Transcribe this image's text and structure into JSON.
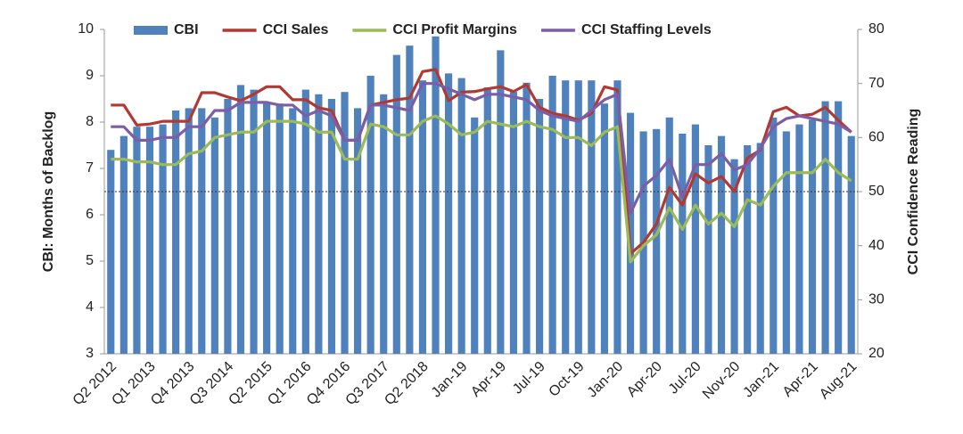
{
  "chart_data": {
    "type": "bar",
    "categories": [
      "Q2 2012",
      null,
      null,
      "Q1 2013",
      null,
      null,
      "Q4 2013",
      null,
      null,
      "Q3 2014",
      null,
      null,
      "Q2 2015",
      null,
      null,
      "Q1 2016",
      null,
      null,
      "Q4 2016",
      null,
      null,
      "Q3 2017",
      null,
      null,
      "Q2 2018",
      null,
      null,
      "Jan-19",
      null,
      null,
      "Apr-19",
      null,
      null,
      "Jul-19",
      null,
      null,
      "Oct-19",
      null,
      null,
      "Jan-20",
      null,
      null,
      "Apr-20",
      null,
      null,
      "Jul-20",
      null,
      null,
      "Nov-20",
      null,
      null,
      "Jan-21",
      null,
      null,
      "Apr-21",
      null,
      null,
      "Aug-21"
    ],
    "series": [
      {
        "name": "CBI",
        "type": "bar",
        "axis": "y",
        "color": "#4f81bd",
        "values": [
          7.4,
          7.7,
          7.9,
          7.9,
          7.95,
          8.25,
          8.3,
          8.3,
          8.1,
          8.5,
          8.8,
          8.7,
          8.4,
          8.4,
          8.3,
          8.7,
          8.6,
          8.5,
          8.65,
          8.3,
          9.0,
          8.6,
          9.45,
          9.65,
          8.9,
          9.85,
          9.05,
          8.95,
          8.1,
          8.75,
          9.55,
          8.65,
          8.85,
          8.5,
          9.0,
          8.9,
          8.9,
          8.9,
          8.4,
          8.9,
          8.2,
          7.8,
          7.85,
          8.1,
          7.75,
          7.95,
          7.5,
          7.7,
          7.2,
          7.5,
          7.55,
          8.1,
          7.8,
          7.95,
          8.05,
          8.45,
          8.45,
          7.7
        ]
      },
      {
        "name": "CCI Sales",
        "type": "line",
        "axis": "y2",
        "color": "#b03a33",
        "values": [
          66,
          66,
          62.3,
          62.5,
          63,
          63,
          63,
          68.3,
          68.3,
          67.5,
          66.8,
          68,
          69.4,
          69.4,
          67,
          67,
          65.5,
          65,
          59.5,
          59.5,
          66,
          66.5,
          67,
          67.3,
          72.2,
          72.6,
          66.8,
          68.4,
          68.5,
          69,
          69.4,
          68.5,
          69.8,
          65.6,
          64.5,
          64,
          63.2,
          64.5,
          69.4,
          68.8,
          38.5,
          40.6,
          44,
          50.8,
          47.5,
          53.3,
          51.6,
          52.8,
          50,
          56.2,
          57.7,
          64.8,
          65.6,
          64,
          64.3,
          65.6,
          63.2,
          61
        ]
      },
      {
        "name": "CCI Profit Margins",
        "type": "line",
        "axis": "y2",
        "color": "#9bbb59",
        "values": [
          56,
          56,
          55.5,
          55.5,
          55,
          55,
          57,
          57.5,
          60,
          60.5,
          61,
          61,
          63,
          63,
          63,
          62.5,
          61,
          61,
          56,
          56,
          62.5,
          62,
          60.5,
          60.5,
          63,
          64,
          62.5,
          60.5,
          61,
          63,
          62.5,
          62,
          63,
          62,
          61.5,
          60,
          60,
          58.5,
          61,
          62,
          37,
          40,
          42,
          47,
          43,
          47.5,
          44,
          46,
          43.5,
          48.5,
          47.5,
          51,
          53.5,
          53.5,
          53.5,
          56,
          53.5,
          52
        ]
      },
      {
        "name": "CCI Staffing Levels",
        "type": "line",
        "axis": "y2",
        "color": "#7b5ea7",
        "values": [
          62,
          62,
          59.5,
          59.5,
          60,
          60,
          62,
          62,
          65,
          65,
          66.5,
          66.5,
          66.5,
          66,
          66,
          64,
          65,
          64,
          59.5,
          59.5,
          66,
          66,
          65.5,
          65,
          70,
          70,
          69,
          68,
          67,
          68,
          68,
          67.5,
          67,
          65,
          64,
          63.5,
          63,
          65,
          67,
          68,
          46,
          51,
          53,
          56,
          49,
          55,
          55,
          57,
          54,
          55,
          58,
          62,
          63.5,
          64,
          63.5,
          63,
          62.5,
          61
        ]
      }
    ],
    "y_label": "CBI: Months of Backlog",
    "y2_label": "CCI Confidence Reading",
    "ylim": [
      3,
      10
    ],
    "yticks": [
      3,
      4,
      5,
      6,
      7,
      8,
      9,
      10
    ],
    "y2lim": [
      20,
      80
    ],
    "y2ticks": [
      20,
      30,
      40,
      50,
      60,
      70,
      80
    ],
    "reference_line": {
      "value": 50,
      "axis": "y2"
    },
    "legend": "top"
  }
}
